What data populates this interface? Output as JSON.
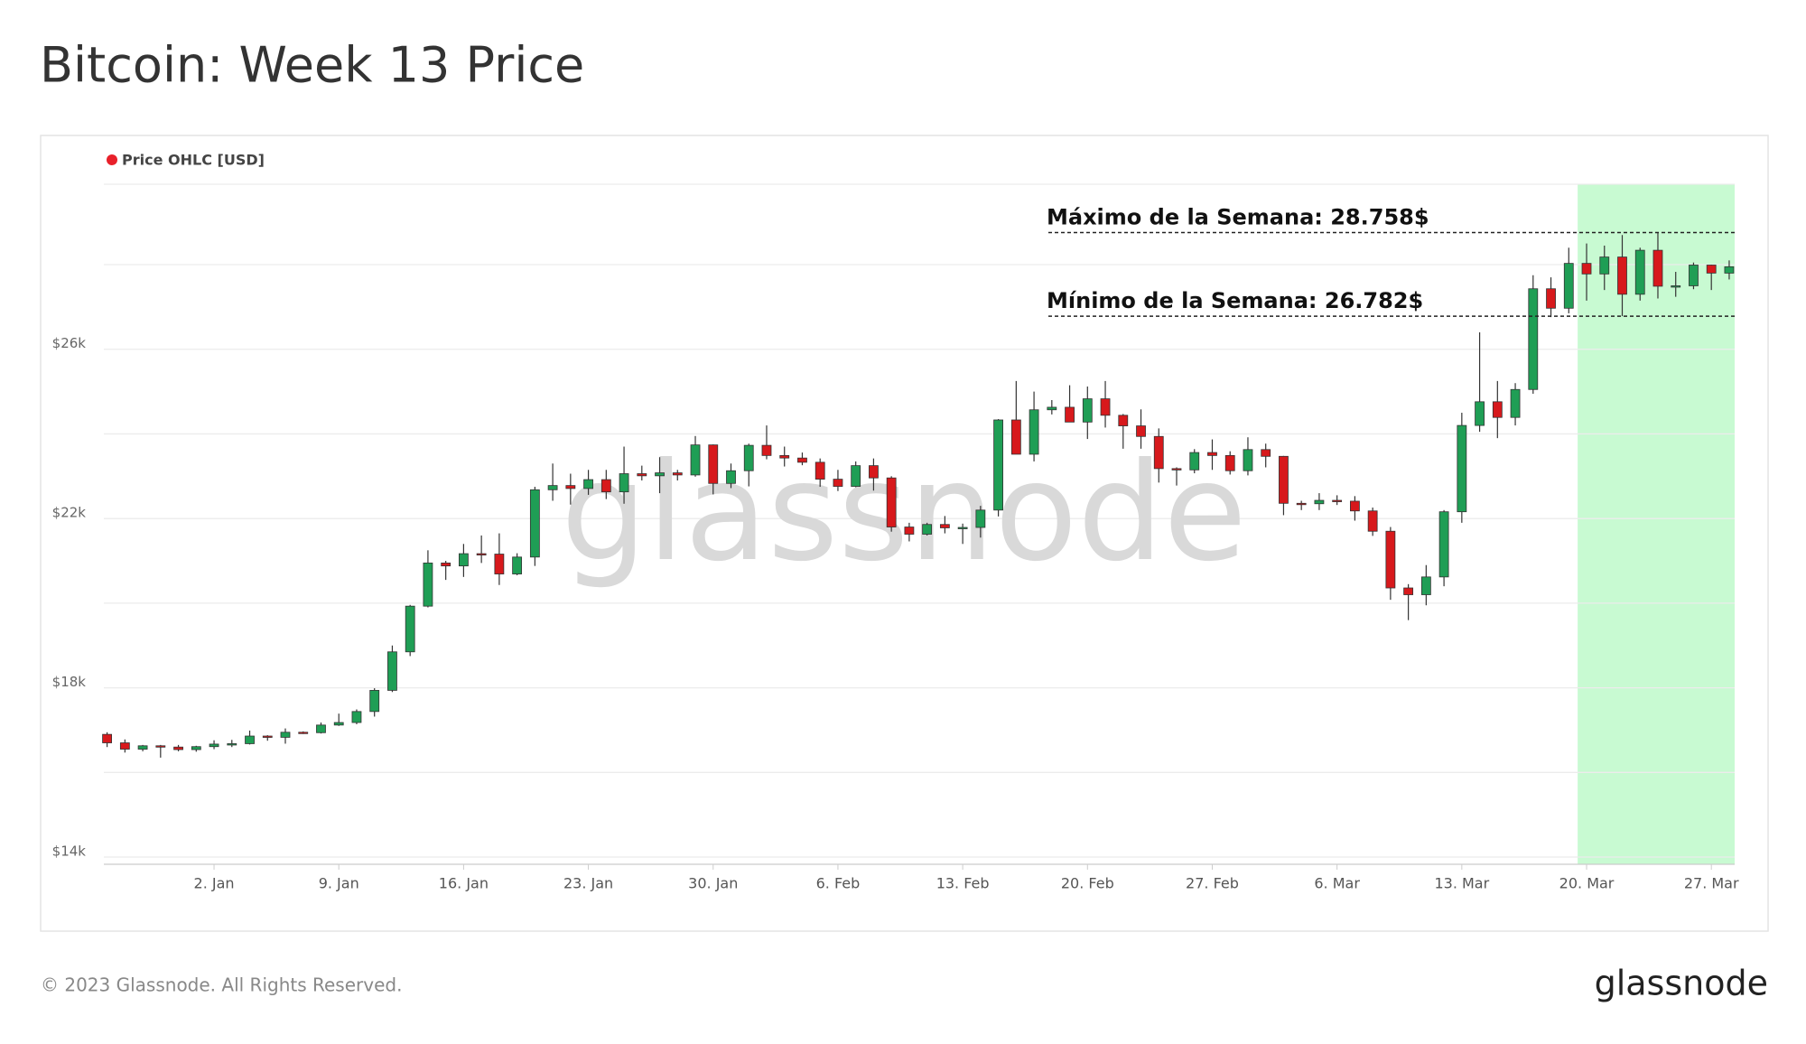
{
  "title": "Bitcoin: Week 13 Price",
  "footer": {
    "copyright": "© 2023 Glassnode. All Rights Reserved.",
    "brand": "glassnode"
  },
  "chart_data": {
    "type": "candlestick",
    "watermark": "glassnode",
    "x": [
      "12-27",
      "12-28",
      "12-29",
      "12-30",
      "12-31",
      "01-01",
      "01-02",
      "01-03",
      "01-04",
      "01-05",
      "01-06",
      "01-07",
      "01-08",
      "01-09",
      "01-10",
      "01-11",
      "01-12",
      "01-13",
      "01-14",
      "01-15",
      "01-16",
      "01-17",
      "01-18",
      "01-19",
      "01-20",
      "01-21",
      "01-22",
      "01-23",
      "01-24",
      "01-25",
      "01-26",
      "01-27",
      "01-28",
      "01-29",
      "01-30",
      "01-31",
      "02-01",
      "02-02",
      "02-03",
      "02-04",
      "02-05",
      "02-06",
      "02-07",
      "02-08",
      "02-09",
      "02-10",
      "02-11",
      "02-12",
      "02-13",
      "02-14",
      "02-15",
      "02-16",
      "02-17",
      "02-18",
      "02-19",
      "02-20",
      "02-21",
      "02-22",
      "02-23",
      "02-24",
      "02-25",
      "02-26",
      "02-27",
      "02-28",
      "03-01",
      "03-02",
      "03-03",
      "03-04",
      "03-05",
      "03-06",
      "03-07",
      "03-08",
      "03-09",
      "03-10",
      "03-11",
      "03-12",
      "03-13",
      "03-14",
      "03-15",
      "03-16",
      "03-17",
      "03-18",
      "03-19",
      "03-20",
      "03-21",
      "03-22",
      "03-23",
      "03-24",
      "03-25",
      "03-26",
      "03-27",
      "03-28"
    ],
    "series": [
      {
        "name": "Price OHLC [USD]",
        "color": "#e8202a",
        "open": [
          16900,
          16700,
          16550,
          16630,
          16600,
          16540,
          16610,
          16670,
          16680,
          16860,
          16830,
          16950,
          16940,
          17120,
          17180,
          17440,
          17940,
          18850,
          19930,
          20950,
          20880,
          21170,
          21160,
          20690,
          21090,
          22680,
          22780,
          22710,
          22920,
          22630,
          23060,
          23010,
          23080,
          23030,
          23740,
          22830,
          23130,
          23730,
          23490,
          23430,
          23330,
          22930,
          22760,
          23250,
          22960,
          21800,
          21630,
          21860,
          21780,
          21790,
          22200,
          24330,
          23520,
          24570,
          24630,
          24280,
          24830,
          24440,
          24190,
          23940,
          23180,
          23150,
          23560,
          23490,
          23130,
          23630,
          23470,
          22360,
          22350,
          22430,
          22410,
          22180,
          21700,
          20360,
          20200,
          20620,
          22160,
          24200,
          24760,
          24390,
          25050,
          27430,
          26970,
          28030,
          27780,
          28180,
          27300,
          28340,
          27490,
          27500,
          27990,
          27800
        ],
        "high": [
          16950,
          16780,
          16650,
          16650,
          16650,
          16630,
          16760,
          16770,
          16990,
          16880,
          17040,
          16970,
          17180,
          17390,
          17490,
          17990,
          19000,
          19960,
          21250,
          21000,
          21400,
          21600,
          21650,
          21180,
          22750,
          23300,
          23060,
          23150,
          23150,
          23700,
          23250,
          23450,
          23150,
          23950,
          23750,
          23300,
          23770,
          24200,
          23700,
          23560,
          23420,
          23150,
          23350,
          23420,
          23000,
          21900,
          21900,
          22060,
          21880,
          22300,
          24350,
          25250,
          25000,
          24800,
          25150,
          25120,
          25250,
          24470,
          24580,
          24130,
          23210,
          23640,
          23870,
          23590,
          23920,
          23770,
          23480,
          22420,
          22600,
          22550,
          22530,
          22260,
          21800,
          20450,
          20900,
          22200,
          24500,
          26400,
          25250,
          25200,
          27750,
          27700,
          28400,
          28500,
          28450,
          28700,
          28400,
          28758,
          27830,
          28050,
          28000,
          28100
        ],
        "low": [
          16600,
          16470,
          16500,
          16350,
          16500,
          16490,
          16550,
          16600,
          16660,
          16750,
          16680,
          16910,
          16920,
          17100,
          17140,
          17320,
          17900,
          18750,
          19900,
          20550,
          20620,
          20950,
          20430,
          20660,
          20880,
          22420,
          22330,
          22560,
          22460,
          22350,
          22900,
          22600,
          22900,
          22990,
          22570,
          22720,
          22760,
          23400,
          23230,
          23260,
          22750,
          22650,
          22740,
          22660,
          21690,
          21460,
          21600,
          21650,
          21400,
          21550,
          22050,
          23550,
          23350,
          24460,
          24280,
          23880,
          24150,
          23650,
          23650,
          22850,
          22780,
          23070,
          23150,
          23040,
          23020,
          23210,
          22080,
          22200,
          22200,
          22320,
          21950,
          21590,
          20080,
          19600,
          19950,
          20400,
          21900,
          24050,
          23900,
          24200,
          24950,
          26760,
          26850,
          27150,
          27400,
          26782,
          27150,
          27200,
          27240,
          27420,
          27400,
          27650
        ],
        "close": [
          16700,
          16550,
          16630,
          16600,
          16540,
          16610,
          16670,
          16680,
          16860,
          16830,
          16950,
          16940,
          17120,
          17180,
          17440,
          17940,
          18850,
          19930,
          20950,
          20880,
          21170,
          21160,
          20690,
          21090,
          22680,
          22780,
          22710,
          22920,
          22630,
          23060,
          23010,
          23080,
          23030,
          23740,
          22830,
          23130,
          23730,
          23490,
          23430,
          23330,
          22930,
          22760,
          23250,
          22960,
          21800,
          21630,
          21860,
          21780,
          21790,
          22200,
          24330,
          23520,
          24570,
          24630,
          24280,
          24830,
          24440,
          24190,
          23940,
          23180,
          23150,
          23560,
          23490,
          23130,
          23630,
          23470,
          22360,
          22350,
          22430,
          22410,
          22180,
          21700,
          20360,
          20200,
          20620,
          22160,
          24200,
          24760,
          24390,
          25050,
          27430,
          26970,
          28030,
          27780,
          28180,
          27300,
          28340,
          27490,
          27500,
          27990,
          27800,
          27950
        ]
      }
    ],
    "up_color": "#1f9e55",
    "down_color": "#d7191c",
    "ylim": [
      13830,
      29900
    ],
    "yticks": [
      {
        "value": 14000,
        "label": "$14k"
      },
      {
        "value": 18000,
        "label": "$18k"
      },
      {
        "value": 22000,
        "label": "$22k"
      },
      {
        "value": 26000,
        "label": "$26k"
      }
    ],
    "ygrid": [
      16000,
      20000,
      24000,
      28000
    ],
    "grid": true,
    "xticks": [
      {
        "value": "01-02",
        "label": "2. Jan"
      },
      {
        "value": "01-09",
        "label": "9. Jan"
      },
      {
        "value": "01-16",
        "label": "16. Jan"
      },
      {
        "value": "01-23",
        "label": "23. Jan"
      },
      {
        "value": "01-30",
        "label": "30. Jan"
      },
      {
        "value": "02-06",
        "label": "6. Feb"
      },
      {
        "value": "02-13",
        "label": "13. Feb"
      },
      {
        "value": "02-20",
        "label": "20. Feb"
      },
      {
        "value": "02-27",
        "label": "27. Feb"
      },
      {
        "value": "03-06",
        "label": "6. Mar"
      },
      {
        "value": "03-13",
        "label": "13. Mar"
      },
      {
        "value": "03-20",
        "label": "20. Mar"
      },
      {
        "value": "03-27",
        "label": "27. Mar"
      }
    ],
    "highlight": {
      "from": "03-20",
      "to": "03-28",
      "color": "#c8fad2"
    },
    "annotations": [
      {
        "text": "Máximo de la Semana: 28.758$",
        "value": 28758
      },
      {
        "text": "Mínimo de la Semana: 26.782$",
        "value": 26782
      }
    ]
  }
}
